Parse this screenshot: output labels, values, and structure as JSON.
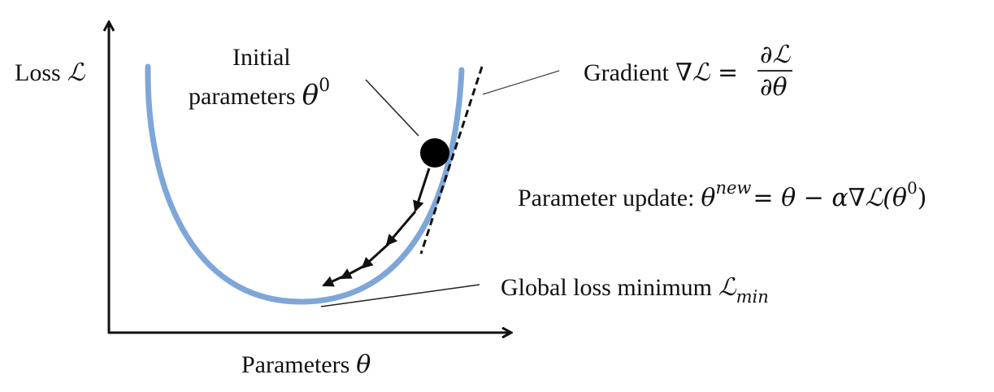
{
  "axes": {
    "y_label": "Loss",
    "y_symbol": "ℒ",
    "x_label": "Parameters",
    "x_symbol": "θ"
  },
  "initial": {
    "line1": "Initial",
    "line2": "parameters",
    "symbol": "θ",
    "superscript": "0"
  },
  "gradient": {
    "label": "Gradient",
    "lhs": "∇ℒ =",
    "numerator": "∂ℒ",
    "denominator": "∂θ"
  },
  "update": {
    "label": "Parameter update:",
    "theta": "θ",
    "superscript": "new",
    "rhs_a": "= θ − α∇ℒ(θ",
    "rhs_sup": "0",
    "rhs_close": ")"
  },
  "minimum": {
    "label": "Global loss minimum",
    "symbol": "ℒ",
    "subscript": "min"
  },
  "colors": {
    "curve": "#7ea6d8",
    "ink": "#111111"
  }
}
